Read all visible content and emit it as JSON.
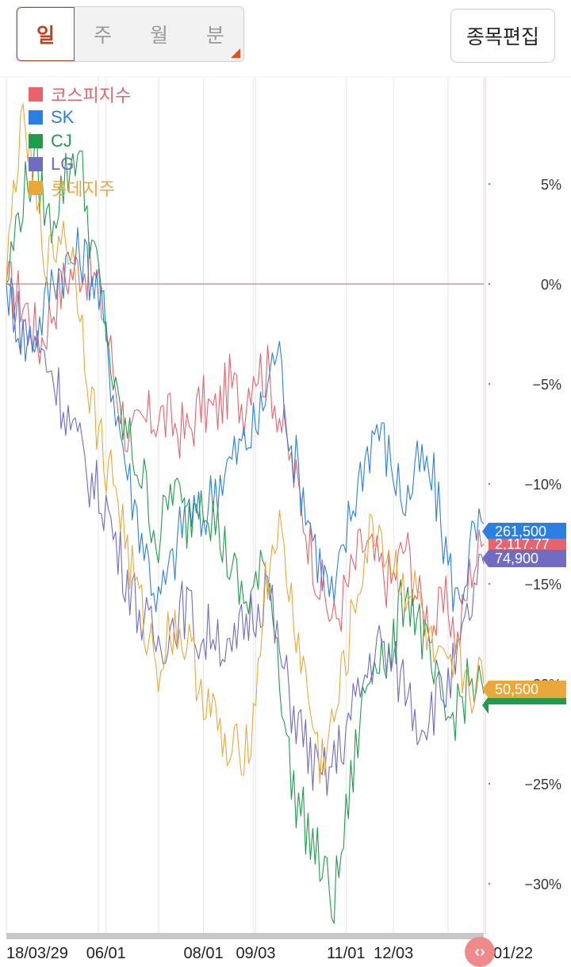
{
  "tabs": [
    {
      "label": "일",
      "active": true
    },
    {
      "label": "주",
      "active": false
    },
    {
      "label": "월",
      "active": false
    },
    {
      "label": "분",
      "active": false
    }
  ],
  "edit_button": "종목편집",
  "colors": {
    "kospi": "#e8636b",
    "sk": "#2b7fe0",
    "cj": "#1f9c4c",
    "lg": "#6f6cc1",
    "lotte": "#eba83a"
  },
  "tags": {
    "sk": "261,500",
    "kospi": "2,117.77",
    "lg": "74,900",
    "lotte": "50,500"
  },
  "scroll_icon": "code-chevrons-icon",
  "chart_data": {
    "type": "line",
    "title": "",
    "xlabel": "",
    "ylabel": "",
    "ylim": [
      -32,
      9
    ],
    "y_ticks": [
      5,
      0,
      -5,
      -10,
      -15,
      -20,
      -25,
      -30
    ],
    "y_tick_labels": [
      "5%",
      "0%",
      "−5%",
      "−10%",
      "−15%",
      "−20%",
      "−25%",
      "−30%"
    ],
    "reference_line": 0,
    "x_tick_labels": [
      "18/03/29",
      "06/01",
      "08/01",
      "09/03",
      "11/01",
      "12/03",
      "01/22"
    ],
    "x_tick_index": [
      0,
      42,
      83,
      105,
      143,
      163,
      201
    ],
    "x_max_index": 201,
    "legend_placement": "top-left",
    "series": [
      {
        "name": "코스피지수",
        "key": "kospi",
        "points": [
          [
            0,
            0
          ],
          [
            8,
            -1
          ],
          [
            14,
            -3
          ],
          [
            20,
            -1
          ],
          [
            26,
            0.5
          ],
          [
            32,
            1
          ],
          [
            38,
            0
          ],
          [
            42,
            -2
          ],
          [
            46,
            -5
          ],
          [
            52,
            -8
          ],
          [
            58,
            -7
          ],
          [
            64,
            -6.5
          ],
          [
            70,
            -7
          ],
          [
            76,
            -7.5
          ],
          [
            82,
            -6
          ],
          [
            88,
            -6.5
          ],
          [
            94,
            -5
          ],
          [
            100,
            -6
          ],
          [
            104,
            -4
          ],
          [
            110,
            -4.5
          ],
          [
            114,
            -6
          ],
          [
            120,
            -9
          ],
          [
            126,
            -12
          ],
          [
            132,
            -15
          ],
          [
            138,
            -17
          ],
          [
            144,
            -15
          ],
          [
            150,
            -13
          ],
          [
            156,
            -14
          ],
          [
            162,
            -15
          ],
          [
            168,
            -13
          ],
          [
            174,
            -16
          ],
          [
            180,
            -17
          ],
          [
            186,
            -16
          ],
          [
            190,
            -18
          ],
          [
            196,
            -14
          ],
          [
            201,
            -13
          ]
        ]
      },
      {
        "name": "SK",
        "key": "sk",
        "points": [
          [
            0,
            0
          ],
          [
            8,
            -3
          ],
          [
            14,
            -2
          ],
          [
            20,
            0.5
          ],
          [
            26,
            1
          ],
          [
            32,
            1.5
          ],
          [
            38,
            0
          ],
          [
            42,
            -3
          ],
          [
            46,
            -6
          ],
          [
            52,
            -10
          ],
          [
            58,
            -13
          ],
          [
            64,
            -16
          ],
          [
            70,
            -14
          ],
          [
            76,
            -11
          ],
          [
            82,
            -12
          ],
          [
            88,
            -10
          ],
          [
            94,
            -9
          ],
          [
            100,
            -8
          ],
          [
            106,
            -7
          ],
          [
            110,
            -5
          ],
          [
            114,
            -3
          ],
          [
            120,
            -8
          ],
          [
            126,
            -11
          ],
          [
            132,
            -14
          ],
          [
            138,
            -16
          ],
          [
            144,
            -12
          ],
          [
            150,
            -9
          ],
          [
            156,
            -7
          ],
          [
            162,
            -9
          ],
          [
            168,
            -11
          ],
          [
            174,
            -9
          ],
          [
            180,
            -10
          ],
          [
            186,
            -14
          ],
          [
            190,
            -16
          ],
          [
            196,
            -13
          ],
          [
            201,
            -12
          ]
        ]
      },
      {
        "name": "CJ",
        "key": "cj",
        "points": [
          [
            0,
            0
          ],
          [
            6,
            4
          ],
          [
            12,
            6
          ],
          [
            18,
            3
          ],
          [
            24,
            5
          ],
          [
            30,
            7
          ],
          [
            36,
            2
          ],
          [
            42,
            -2
          ],
          [
            46,
            -6
          ],
          [
            52,
            -8
          ],
          [
            58,
            -10
          ],
          [
            64,
            -13
          ],
          [
            70,
            -10
          ],
          [
            76,
            -12
          ],
          [
            82,
            -10
          ],
          [
            88,
            -12
          ],
          [
            94,
            -14
          ],
          [
            100,
            -16
          ],
          [
            106,
            -15
          ],
          [
            110,
            -14
          ],
          [
            114,
            -18
          ],
          [
            120,
            -25
          ],
          [
            126,
            -27
          ],
          [
            132,
            -29
          ],
          [
            138,
            -31
          ],
          [
            144,
            -26
          ],
          [
            150,
            -21
          ],
          [
            156,
            -18
          ],
          [
            162,
            -19
          ],
          [
            168,
            -15
          ],
          [
            174,
            -17
          ],
          [
            180,
            -20
          ],
          [
            186,
            -22
          ],
          [
            190,
            -21
          ],
          [
            196,
            -20
          ],
          [
            201,
            -20.5
          ]
        ]
      },
      {
        "name": "LG",
        "key": "lg",
        "points": [
          [
            0,
            0
          ],
          [
            6,
            -2
          ],
          [
            12,
            -3
          ],
          [
            18,
            -4
          ],
          [
            24,
            -6
          ],
          [
            30,
            -8
          ],
          [
            36,
            -10
          ],
          [
            42,
            -11
          ],
          [
            46,
            -13
          ],
          [
            52,
            -15
          ],
          [
            58,
            -17
          ],
          [
            64,
            -18
          ],
          [
            70,
            -17
          ],
          [
            76,
            -16
          ],
          [
            82,
            -18
          ],
          [
            88,
            -17
          ],
          [
            94,
            -19
          ],
          [
            100,
            -17
          ],
          [
            106,
            -16
          ],
          [
            110,
            -15
          ],
          [
            114,
            -18
          ],
          [
            120,
            -21
          ],
          [
            126,
            -23
          ],
          [
            132,
            -25
          ],
          [
            138,
            -24
          ],
          [
            144,
            -22
          ],
          [
            150,
            -20
          ],
          [
            156,
            -18
          ],
          [
            162,
            -19
          ],
          [
            168,
            -20
          ],
          [
            174,
            -22
          ],
          [
            180,
            -21
          ],
          [
            186,
            -20
          ],
          [
            190,
            -19
          ],
          [
            196,
            -16
          ],
          [
            201,
            -14
          ]
        ]
      },
      {
        "name": "롯데지주",
        "key": "lotte",
        "points": [
          [
            0,
            0
          ],
          [
            4,
            6
          ],
          [
            8,
            8
          ],
          [
            12,
            4
          ],
          [
            18,
            1
          ],
          [
            24,
            3
          ],
          [
            30,
            0
          ],
          [
            36,
            -6
          ],
          [
            42,
            -9
          ],
          [
            46,
            -10
          ],
          [
            52,
            -14
          ],
          [
            58,
            -17
          ],
          [
            64,
            -19
          ],
          [
            70,
            -17
          ],
          [
            76,
            -18
          ],
          [
            82,
            -20
          ],
          [
            88,
            -22
          ],
          [
            94,
            -24
          ],
          [
            100,
            -23
          ],
          [
            104,
            -22
          ],
          [
            108,
            -16
          ],
          [
            114,
            -12
          ],
          [
            120,
            -16
          ],
          [
            126,
            -20
          ],
          [
            132,
            -24
          ],
          [
            138,
            -22
          ],
          [
            144,
            -18
          ],
          [
            150,
            -14
          ],
          [
            156,
            -12
          ],
          [
            162,
            -14
          ],
          [
            168,
            -15
          ],
          [
            174,
            -16
          ],
          [
            180,
            -19
          ],
          [
            186,
            -20
          ],
          [
            190,
            -19
          ],
          [
            196,
            -20
          ],
          [
            201,
            -20
          ]
        ]
      }
    ]
  }
}
